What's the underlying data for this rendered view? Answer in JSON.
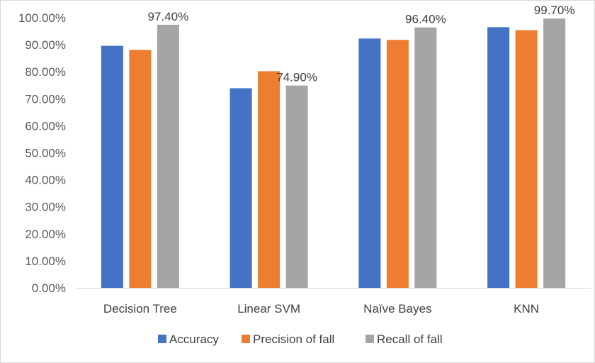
{
  "chart_data": {
    "type": "bar",
    "title": "",
    "xlabel": "",
    "ylabel": "",
    "ylim": [
      0,
      100
    ],
    "y_tick_step": 10,
    "y_tick_format": "percent_2dp",
    "grid": false,
    "legend_position": "bottom",
    "categories": [
      "Decision Tree",
      "Linear SVM",
      "Naïve Bayes",
      "KNN"
    ],
    "series": [
      {
        "name": "Accuracy",
        "color": "#4472C4",
        "values": [
          89.6,
          73.9,
          92.3,
          96.5
        ]
      },
      {
        "name": "Precision of fall",
        "color": "#ED7D31",
        "values": [
          88.1,
          80.2,
          91.8,
          95.4
        ]
      },
      {
        "name": "Recall of fall",
        "color": "#A5A5A5",
        "values": [
          97.4,
          74.9,
          96.4,
          99.7
        ]
      }
    ],
    "data_labels": [
      {
        "series": 2,
        "category": 0,
        "text": "97.40%"
      },
      {
        "series": 2,
        "category": 1,
        "text": "74.90%"
      },
      {
        "series": 2,
        "category": 2,
        "text": "96.40%"
      },
      {
        "series": 2,
        "category": 3,
        "text": "99.70%"
      }
    ]
  }
}
